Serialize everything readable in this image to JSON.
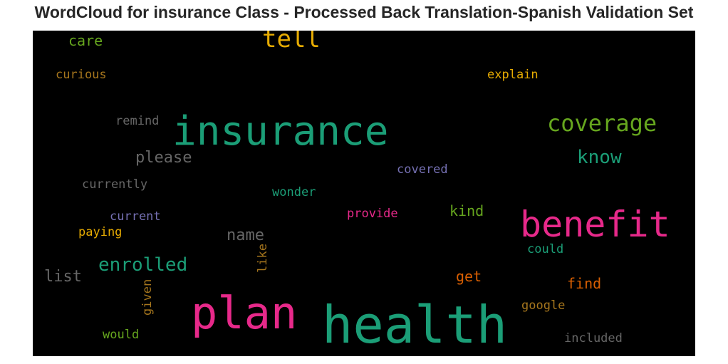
{
  "chart_data": {
    "type": "wordcloud",
    "title": "WordCloud for insurance Class - Processed Back Translation-Spanish Validation Set",
    "background": "#000000",
    "words": [
      {
        "text": "health",
        "color": "#1b9e77"
      },
      {
        "text": "insurance",
        "color": "#1b9e77"
      },
      {
        "text": "plan",
        "color": "#e7298a"
      },
      {
        "text": "benefit",
        "color": "#e7298a"
      },
      {
        "text": "tell",
        "color": "#e6ab02"
      },
      {
        "text": "coverage",
        "color": "#66a61e"
      },
      {
        "text": "enrolled",
        "color": "#1b9e77"
      },
      {
        "text": "know",
        "color": "#1b9e77"
      },
      {
        "text": "please",
        "color": "#666666"
      },
      {
        "text": "name",
        "color": "#666666"
      },
      {
        "text": "list",
        "color": "#666666"
      },
      {
        "text": "care",
        "color": "#66a61e"
      },
      {
        "text": "kind",
        "color": "#66a61e"
      },
      {
        "text": "get",
        "color": "#d95f02"
      },
      {
        "text": "find",
        "color": "#d95f02"
      },
      {
        "text": "explain",
        "color": "#e6ab02"
      },
      {
        "text": "curious",
        "color": "#a6761d"
      },
      {
        "text": "remind",
        "color": "#666666"
      },
      {
        "text": "covered",
        "color": "#7570b3"
      },
      {
        "text": "currently",
        "color": "#666666"
      },
      {
        "text": "wonder",
        "color": "#1b9e77"
      },
      {
        "text": "current",
        "color": "#7570b3"
      },
      {
        "text": "provide",
        "color": "#e7298a"
      },
      {
        "text": "paying",
        "color": "#e6ab02"
      },
      {
        "text": "could",
        "color": "#1b9e77"
      },
      {
        "text": "like",
        "color": "#a6761d"
      },
      {
        "text": "given",
        "color": "#a6761d"
      },
      {
        "text": "google",
        "color": "#a6761d"
      },
      {
        "text": "would",
        "color": "#66a61e"
      },
      {
        "text": "included",
        "color": "#666666"
      }
    ]
  }
}
